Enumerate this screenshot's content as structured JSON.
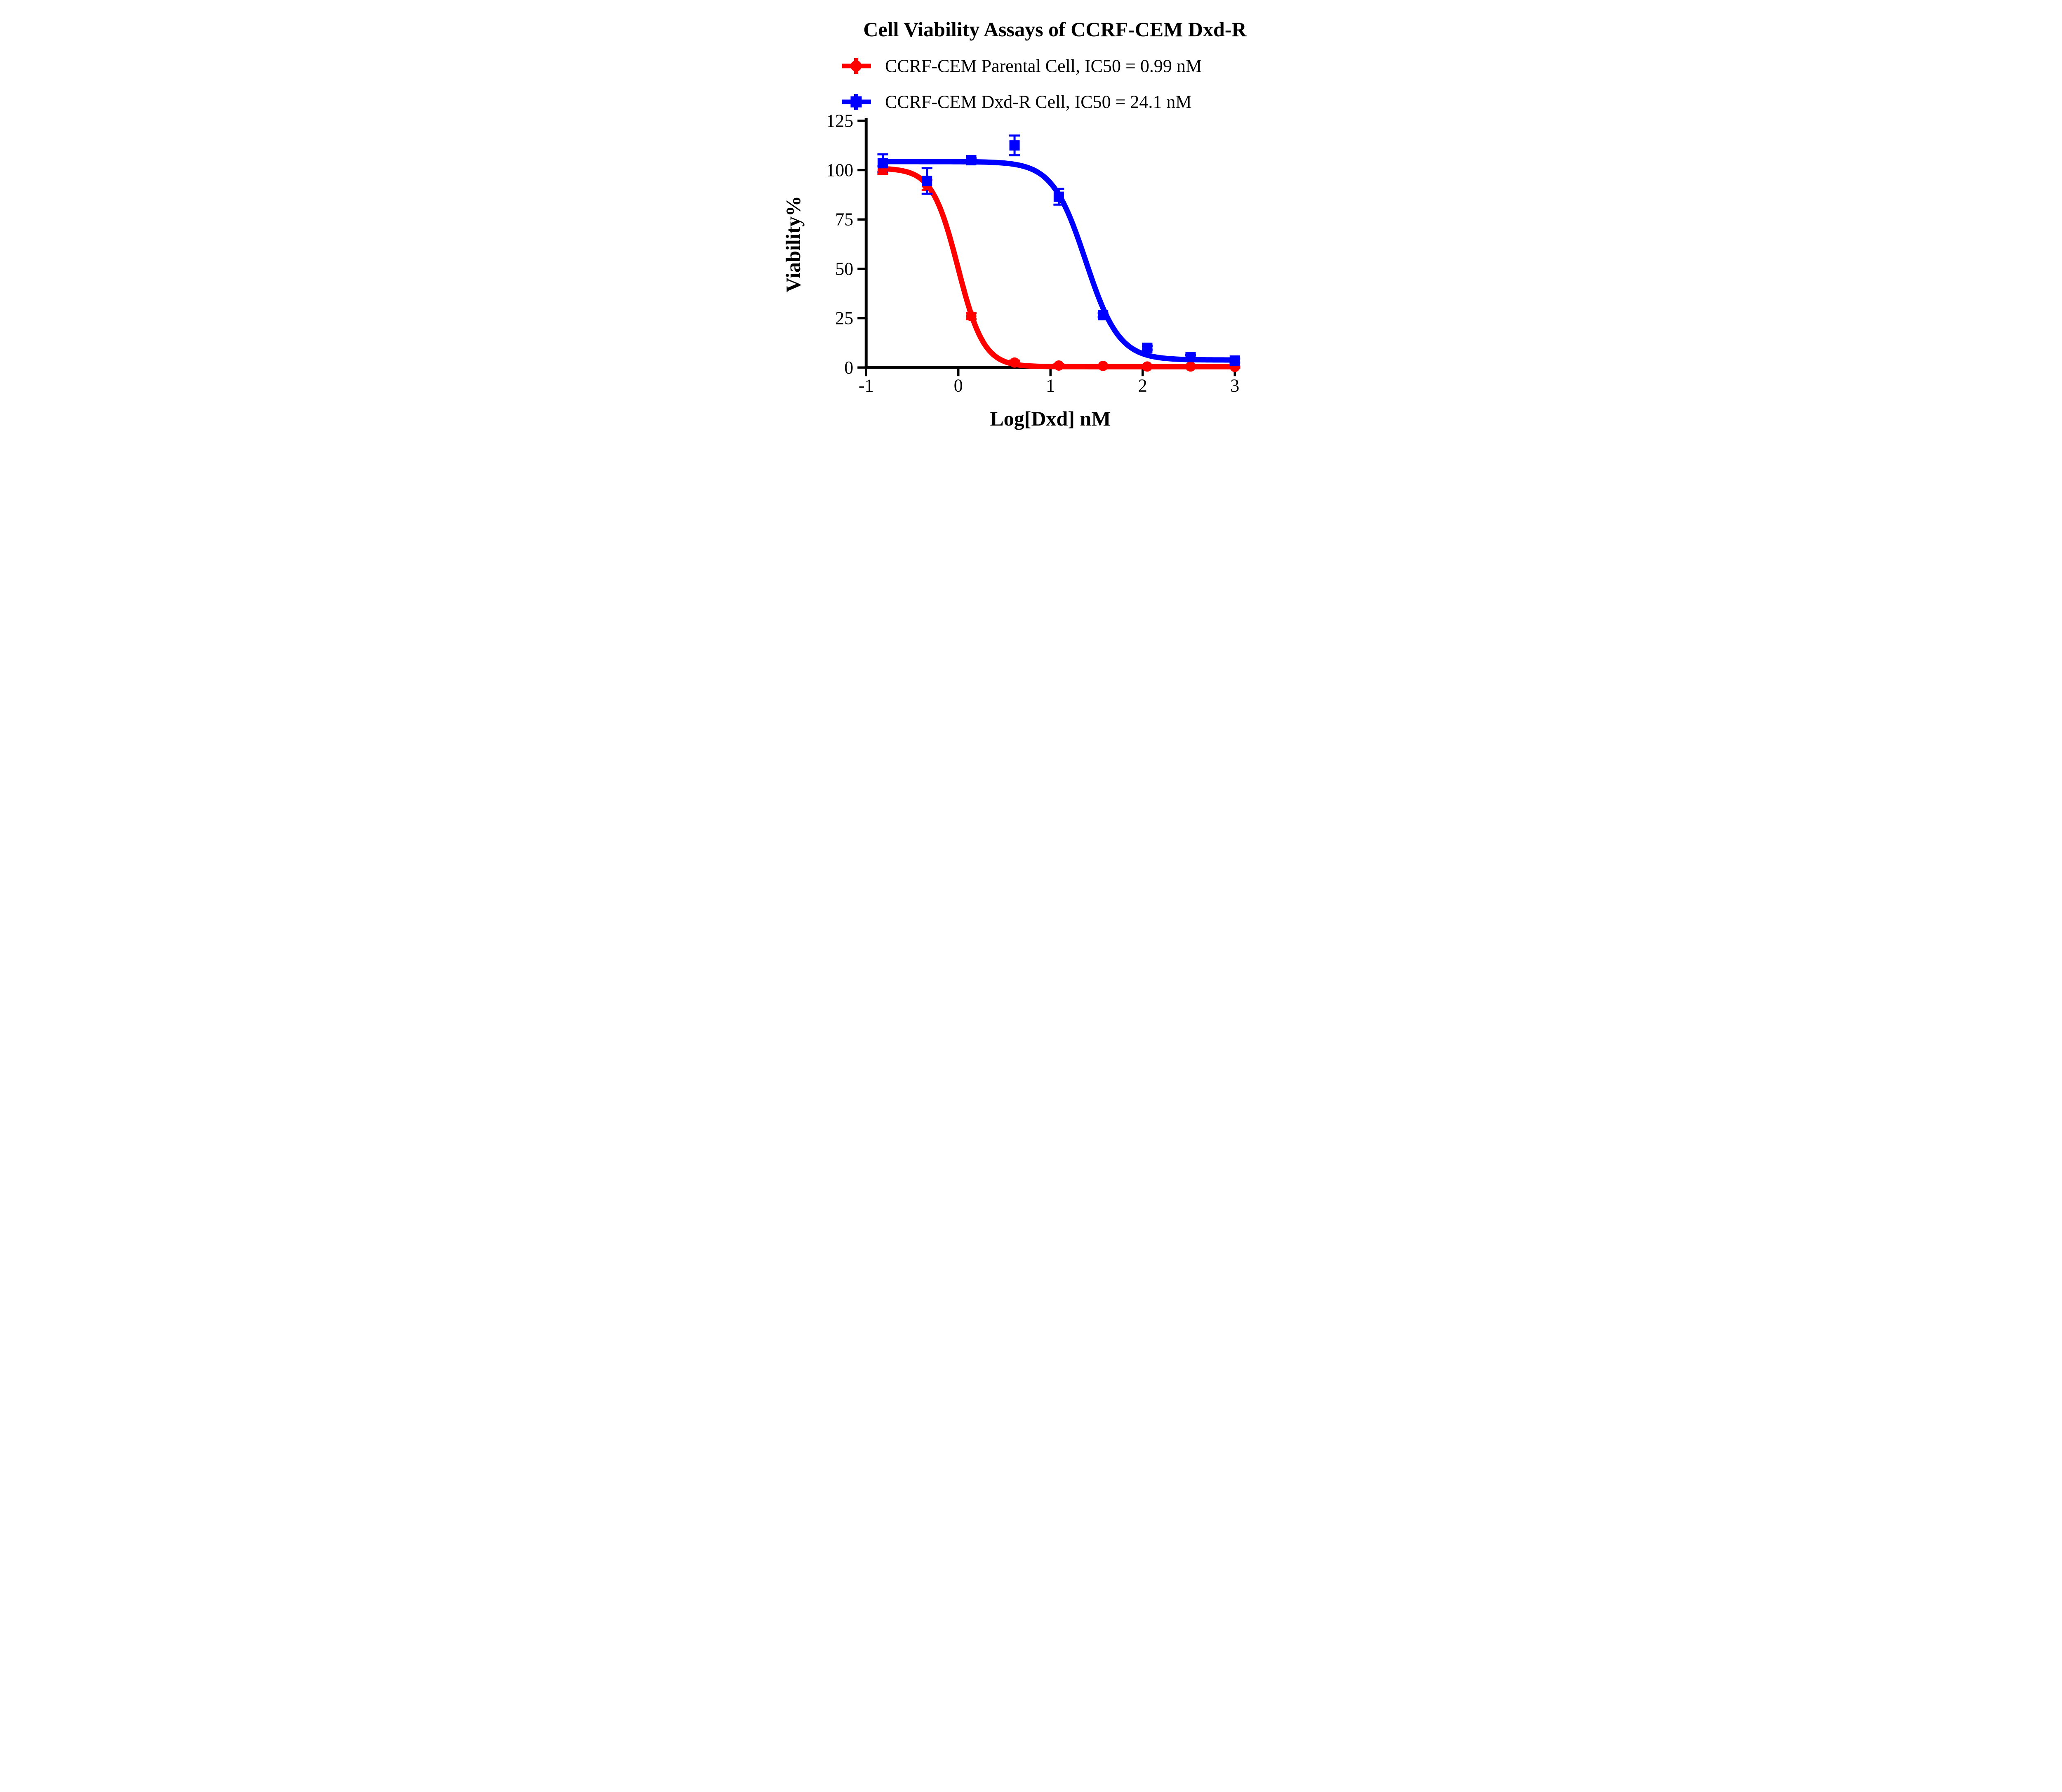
{
  "title": "Cell Viability Assays of CCRF-CEM Dxd-R",
  "colors": {
    "red": "#FF0000",
    "blue": "#0000FF",
    "axis": "#000000",
    "background": "#FFFFFF"
  },
  "chart_data": {
    "type": "line",
    "title": "Cell Viability Assays of CCRF-CEM Dxd-R",
    "xlabel": "Log[Dxd] nM",
    "ylabel": "Viability%",
    "xlim": [
      -1,
      3
    ],
    "ylim": [
      0,
      125
    ],
    "xticks": [
      -1,
      0,
      1,
      2,
      3
    ],
    "yticks": [
      0,
      25,
      50,
      75,
      100,
      125
    ],
    "grid": false,
    "legend_position": "top-left",
    "series": [
      {
        "name": "CCRF-CEM Parental Cell, IC50 = 0.99 nM",
        "color": "#FF0000",
        "marker": "circle",
        "ic50_nM": 0.99,
        "x": [
          -0.82,
          -0.34,
          0.14,
          0.61,
          1.09,
          1.57,
          2.05,
          2.52,
          3.0
        ],
        "y": [
          100,
          92.5,
          26,
          2.5,
          1,
          0.8,
          0.5,
          0.5,
          0.3
        ],
        "yerr": [
          2,
          2.5,
          1.5,
          1,
          0.8,
          0.5,
          0.5,
          0.5,
          0.5
        ],
        "fit": {
          "top": 101,
          "bottom": 0.4,
          "logIC50": -0.004,
          "hill": 3.1
        }
      },
      {
        "name": "CCRF-CEM Dxd-R Cell, IC50 = 24.1 nM",
        "color": "#0000FF",
        "marker": "square",
        "ic50_nM": 24.1,
        "x": [
          -0.82,
          -0.34,
          0.14,
          0.61,
          1.09,
          1.57,
          2.05,
          2.52,
          3.0
        ],
        "y": [
          103.5,
          94.5,
          105,
          112.5,
          86.5,
          26.5,
          10,
          5.3,
          3.5
        ],
        "yerr": [
          4.5,
          6.5,
          1,
          5,
          4,
          1,
          1,
          1,
          1
        ],
        "fit": {
          "top": 104.3,
          "bottom": 3.8,
          "logIC50": 1.382,
          "hill": 2.4
        }
      }
    ]
  }
}
